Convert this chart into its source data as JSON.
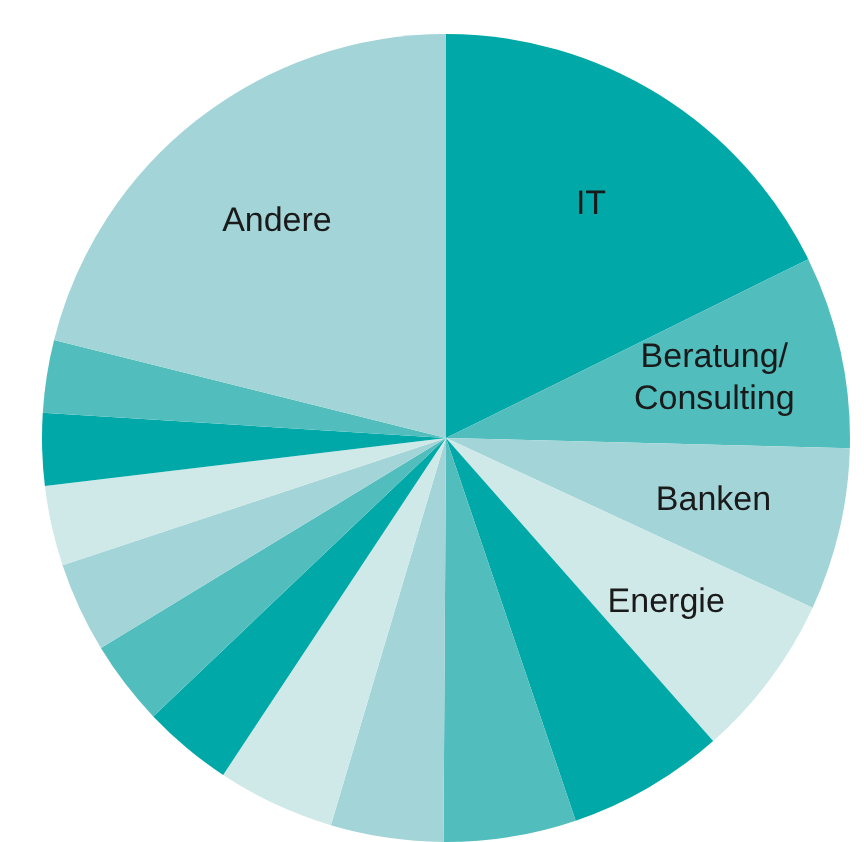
{
  "chart_data": {
    "type": "pie",
    "categories": [
      "IT",
      "Beratung/ Consulting",
      "Banken",
      "Energie",
      null,
      null,
      null,
      null,
      null,
      null,
      null,
      null,
      null,
      null,
      "Andere"
    ],
    "values": [
      17.7,
      7.7,
      6.5,
      6.6,
      6.3,
      5.3,
      4.5,
      4.7,
      3.6,
      3.4,
      3.6,
      3.2,
      2.9,
      2.9,
      21.1
    ],
    "colors": [
      "#00a9a7",
      "#52bdbd",
      "#a3d5d8",
      "#cfe9e9",
      "#00a9a7",
      "#52bdbd",
      "#a3d5d8",
      "#cfe9e9",
      "#00a9a7",
      "#52bdbd",
      "#a3d5d8",
      "#cfe9e9",
      "#00a9a7",
      "#52bdbd",
      "#a3d5d8"
    ],
    "legend": false
  }
}
